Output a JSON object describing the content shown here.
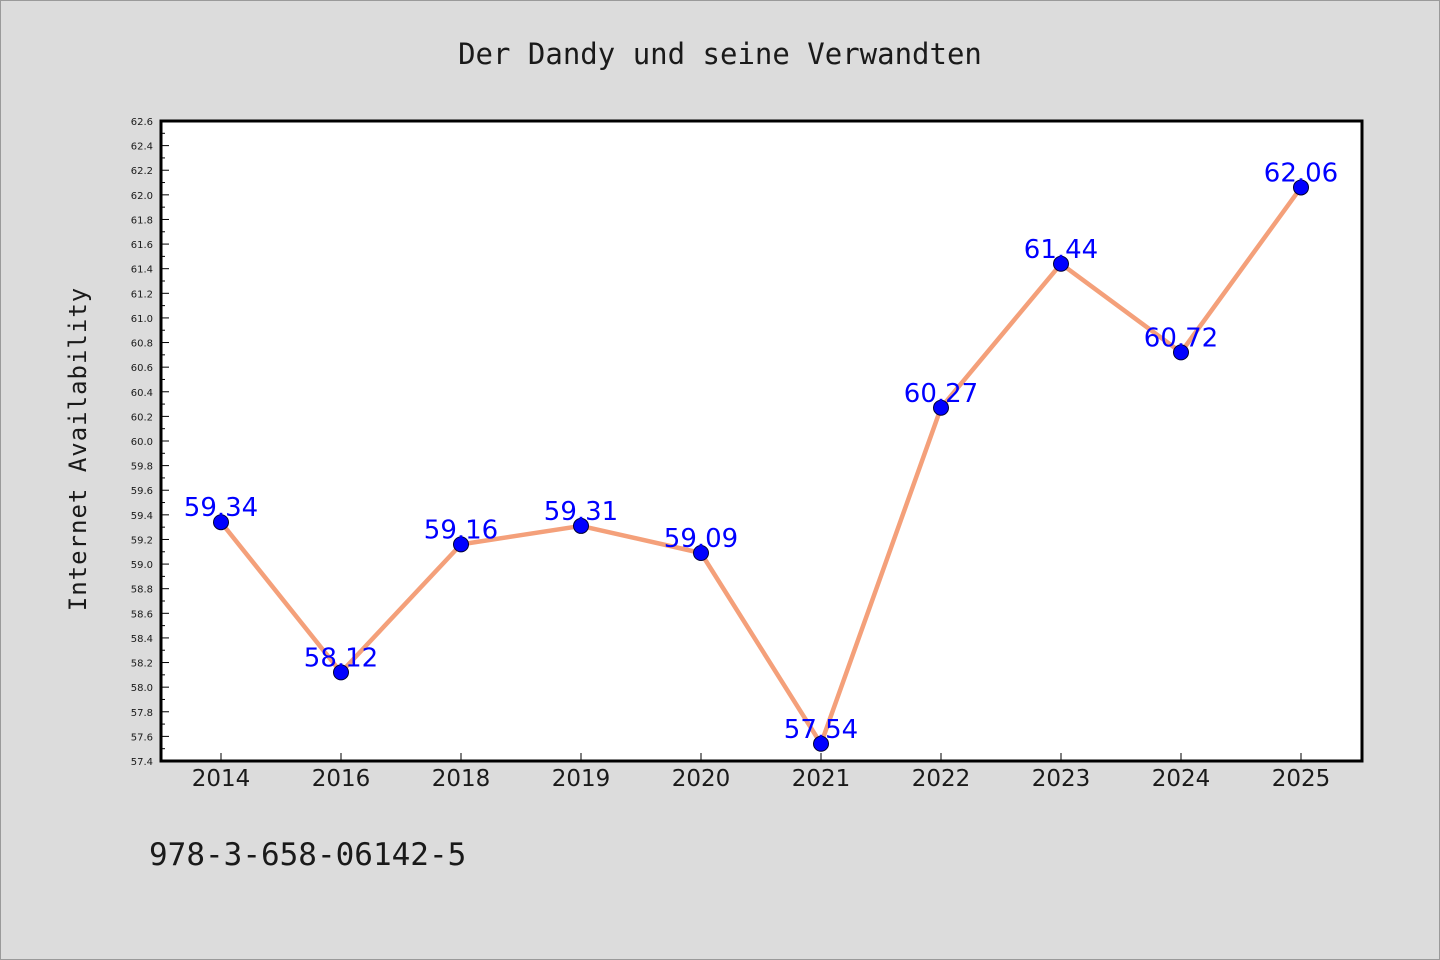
{
  "chart_data": {
    "type": "line",
    "title": "Der Dandy und seine Verwandten",
    "xlabel": "",
    "ylabel": "Internet Availability",
    "categories": [
      "2014",
      "2016",
      "2018",
      "2019",
      "2020",
      "2021",
      "2022",
      "2023",
      "2024",
      "2025"
    ],
    "series": [
      {
        "values": [
          59.34,
          58.12,
          59.16,
          59.31,
          59.09,
          57.54,
          60.27,
          61.44,
          60.72,
          62.06
        ],
        "labels": [
          "59.34",
          "58.12",
          "59.16",
          "59.31",
          "59.09",
          "57.54",
          "60.27",
          "61.44",
          "60.72",
          "62.06"
        ]
      }
    ],
    "ylim": [
      57.4,
      62.6
    ],
    "yticks": [
      "57.4",
      "57.6",
      "57.8",
      "58.0",
      "58.2",
      "58.4",
      "58.6",
      "58.8",
      "59.0",
      "59.2",
      "59.4",
      "59.6",
      "59.8",
      "60.0",
      "60.2",
      "60.4",
      "60.6",
      "60.8",
      "61.0",
      "61.2",
      "61.4",
      "61.6",
      "61.8",
      "62.0",
      "62.2",
      "62.4",
      "62.6"
    ],
    "grid": false,
    "legend": "none",
    "colors": {
      "line": "#f4a07a",
      "marker": "#0000ff",
      "label": "#0000ff",
      "background": "#dcdcdc",
      "plot_area": "#ffffff"
    }
  },
  "footer": {
    "isbn": "978-3-658-06142-5"
  }
}
